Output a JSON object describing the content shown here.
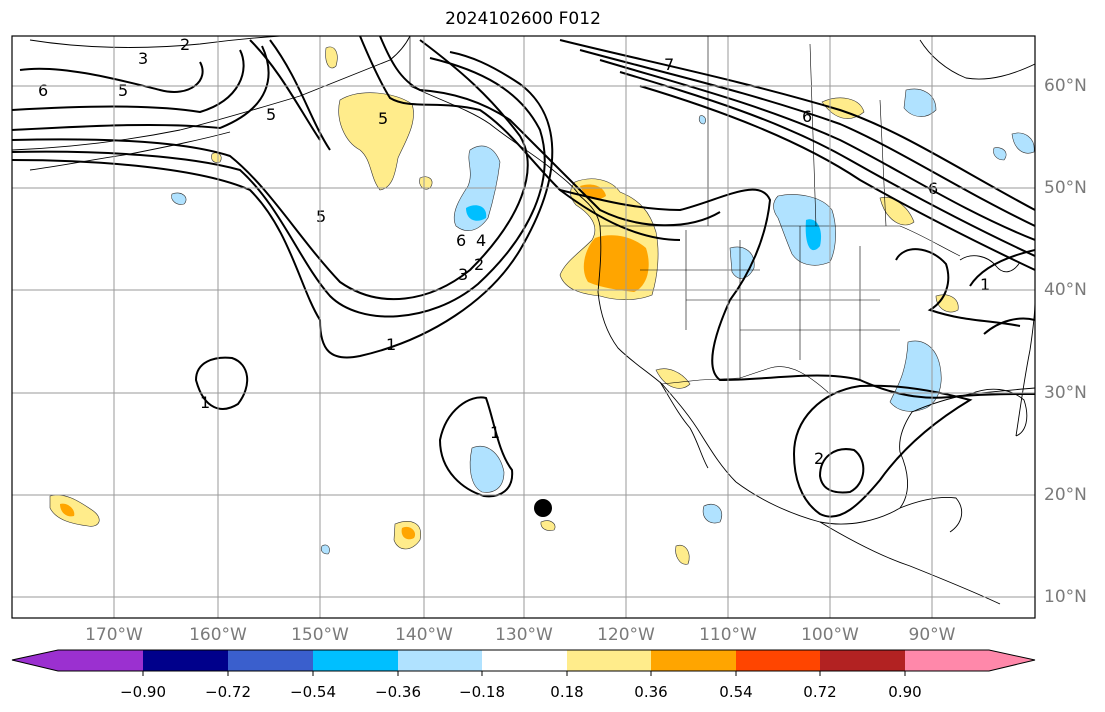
{
  "title": "2024102600 F012",
  "lat_labels": [
    "60°N",
    "50°N",
    "40°N",
    "30°N",
    "20°N",
    "10°N"
  ],
  "lon_labels": [
    "170°W",
    "160°W",
    "150°W",
    "140°W",
    "130°W",
    "120°W",
    "110°W",
    "100°W",
    "90°W"
  ],
  "contour_labels": [
    "6",
    "5",
    "3",
    "2",
    "5",
    "6",
    "4",
    "5",
    "3",
    "2",
    "1",
    "5",
    "1",
    "1",
    "2",
    "1",
    "6",
    "7",
    "6"
  ],
  "colorbar": {
    "ticks": [
      "−0.90",
      "−0.72",
      "−0.54",
      "−0.36",
      "−0.18",
      "0.18",
      "0.36",
      "0.54",
      "0.72",
      "0.90"
    ],
    "colors": [
      "#9b30d0",
      "#00008b",
      "#3a5fcd",
      "#00bfff",
      "#b0e2ff",
      "#ffffff",
      "#ffec8b",
      "#ffa500",
      "#ff4500",
      "#b22222",
      "#ff88aa"
    ]
  },
  "colors": {
    "positive_1": "#ffec8b",
    "positive_2": "#ffa500",
    "negative_1": "#b0e2ff",
    "negative_2": "#00bfff"
  },
  "marker": "black-dot"
}
